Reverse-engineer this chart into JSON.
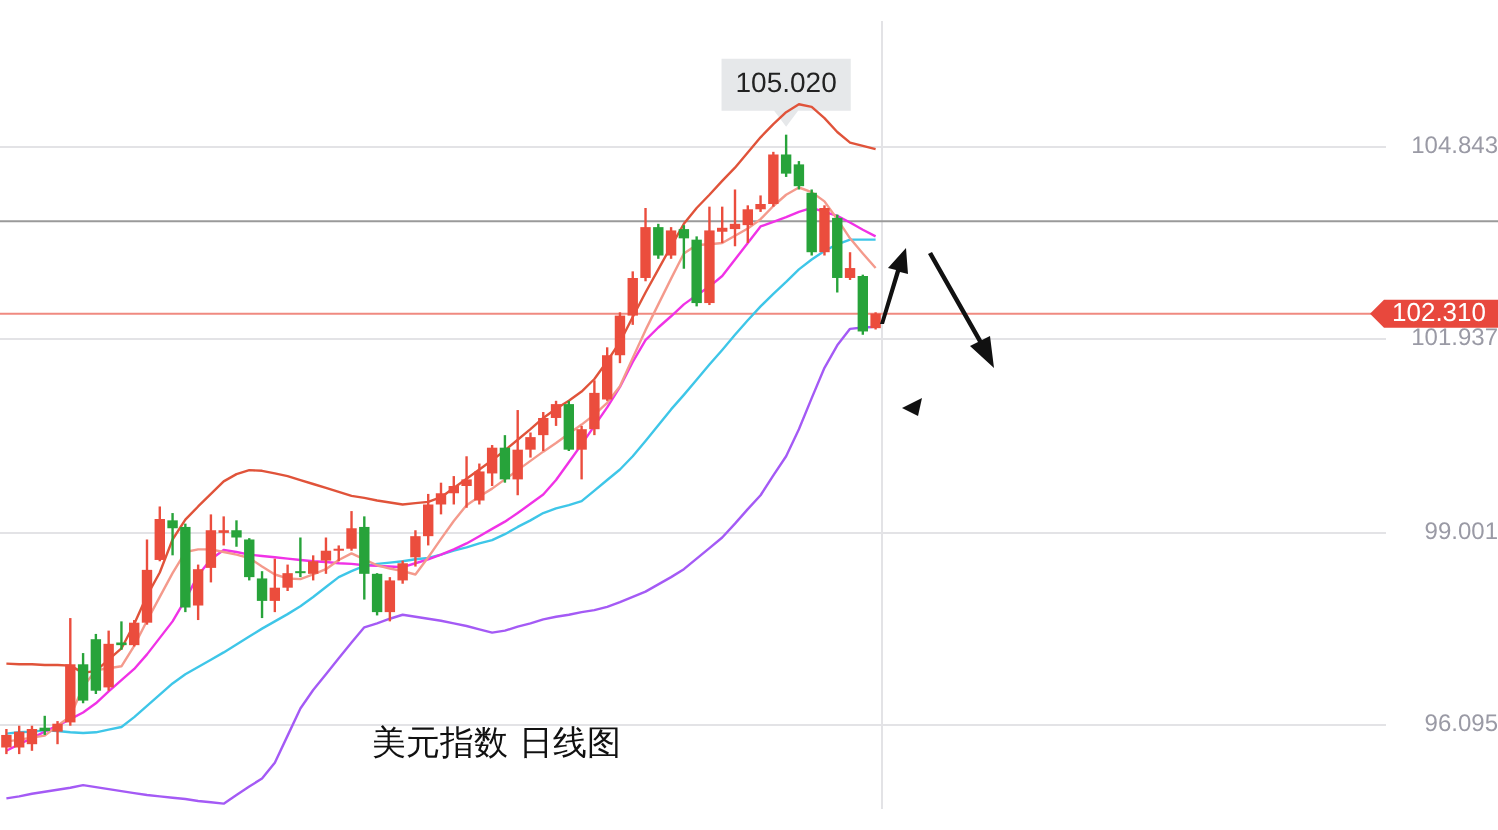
{
  "chart_data": {
    "type": "candlestick",
    "title": "美元指数 日线图",
    "categories": [
      null,
      null,
      null,
      null,
      null,
      null,
      null,
      null,
      null,
      null,
      null,
      null,
      null,
      null,
      null,
      null,
      null,
      null,
      null,
      null,
      null,
      null,
      null,
      null,
      null,
      null,
      null,
      null,
      null,
      null,
      null,
      null,
      null,
      null,
      null,
      null,
      null,
      null,
      null,
      null,
      null,
      null,
      null,
      null,
      null,
      null,
      null,
      null,
      null,
      null,
      null,
      null,
      null,
      null,
      null,
      null,
      null,
      null,
      null,
      null,
      null,
      null,
      null,
      null,
      null,
      null,
      null,
      null,
      null
    ],
    "ohlc": [
      [
        95.74,
        96.02,
        95.64,
        95.93
      ],
      [
        95.74,
        96.07,
        95.64,
        95.98
      ],
      [
        95.79,
        96.07,
        95.69,
        96.02
      ],
      [
        96.04,
        96.22,
        95.93,
        95.99
      ],
      [
        95.98,
        96.14,
        95.79,
        96.1
      ],
      [
        96.12,
        97.7,
        96.07,
        97.0
      ],
      [
        97.0,
        97.17,
        96.41,
        96.45
      ],
      [
        97.38,
        97.46,
        96.55,
        96.6
      ],
      [
        96.65,
        97.51,
        96.6,
        97.31
      ],
      [
        97.33,
        97.65,
        97.22,
        97.29
      ],
      [
        97.29,
        97.67,
        97.27,
        97.63
      ],
      [
        97.63,
        98.89,
        97.6,
        98.43
      ],
      [
        98.58,
        99.39,
        98.56,
        99.2
      ],
      [
        99.18,
        99.29,
        98.65,
        99.06
      ],
      [
        99.08,
        99.13,
        97.79,
        97.86
      ],
      [
        97.89,
        98.51,
        97.67,
        98.44
      ],
      [
        98.46,
        99.27,
        98.24,
        99.03
      ],
      [
        98.99,
        99.24,
        98.8,
        99.03
      ],
      [
        99.03,
        99.18,
        98.78,
        98.92
      ],
      [
        98.89,
        98.91,
        98.27,
        98.32
      ],
      [
        98.3,
        98.41,
        97.7,
        97.96
      ],
      [
        97.96,
        98.6,
        97.79,
        98.16
      ],
      [
        98.16,
        98.51,
        98.11,
        98.38
      ],
      [
        98.41,
        98.92,
        98.32,
        98.38
      ],
      [
        98.37,
        98.65,
        98.27,
        98.56
      ],
      [
        98.57,
        98.92,
        98.37,
        98.72
      ],
      [
        98.72,
        98.8,
        98.56,
        98.75
      ],
      [
        98.75,
        99.32,
        98.72,
        99.06
      ],
      [
        99.08,
        99.24,
        97.98,
        98.37
      ],
      [
        98.37,
        98.38,
        97.74,
        97.79
      ],
      [
        97.79,
        98.32,
        97.65,
        98.27
      ],
      [
        98.27,
        98.57,
        98.22,
        98.53
      ],
      [
        98.62,
        99.03,
        98.48,
        98.94
      ],
      [
        98.94,
        99.58,
        98.8,
        99.42
      ],
      [
        99.42,
        99.75,
        99.27,
        99.59
      ],
      [
        99.59,
        99.85,
        99.42,
        99.7
      ],
      [
        99.7,
        100.15,
        99.37,
        99.8
      ],
      [
        99.48,
        100.04,
        99.42,
        99.92
      ],
      [
        99.89,
        100.32,
        99.7,
        100.28
      ],
      [
        100.28,
        100.47,
        99.75,
        99.8
      ],
      [
        99.8,
        100.85,
        99.56,
        100.25
      ],
      [
        100.25,
        100.51,
        100.13,
        100.44
      ],
      [
        100.47,
        100.82,
        100.23,
        100.73
      ],
      [
        100.73,
        100.99,
        100.61,
        100.94
      ],
      [
        100.94,
        100.99,
        100.23,
        100.25
      ],
      [
        100.25,
        100.61,
        99.8,
        100.56
      ],
      [
        100.56,
        101.3,
        100.47,
        101.11
      ],
      [
        101.01,
        101.8,
        100.99,
        101.68
      ],
      [
        101.68,
        102.33,
        101.56,
        102.28
      ],
      [
        102.28,
        102.95,
        102.14,
        102.85
      ],
      [
        102.85,
        103.91,
        102.8,
        103.62
      ],
      [
        103.62,
        103.67,
        103.14,
        103.19
      ],
      [
        103.19,
        103.62,
        103.14,
        103.57
      ],
      [
        103.59,
        103.65,
        102.99,
        103.45
      ],
      [
        103.43,
        103.48,
        102.42,
        102.47
      ],
      [
        102.47,
        103.93,
        102.44,
        103.57
      ],
      [
        103.55,
        103.93,
        103.38,
        103.61
      ],
      [
        103.59,
        104.19,
        103.33,
        103.67
      ],
      [
        103.65,
        103.95,
        103.38,
        103.89
      ],
      [
        103.89,
        104.1,
        103.85,
        103.97
      ],
      [
        103.97,
        104.76,
        103.93,
        104.72
      ],
      [
        104.72,
        105.02,
        104.38,
        104.43
      ],
      [
        104.57,
        104.62,
        104.19,
        104.24
      ],
      [
        104.14,
        104.19,
        103.19,
        103.24
      ],
      [
        103.24,
        103.95,
        103.19,
        103.91
      ],
      [
        103.76,
        103.81,
        102.63,
        102.85
      ],
      [
        102.85,
        103.24,
        102.82,
        103.0
      ],
      [
        102.88,
        102.9,
        101.99,
        102.04
      ],
      [
        102.09,
        102.33,
        102.07,
        102.31
      ]
    ],
    "series": [
      {
        "type": "line",
        "color": "#e0533a",
        "values": [
          97.01,
          97.0,
          97.0,
          96.99,
          96.99,
          96.98,
          96.87,
          96.9,
          97.07,
          97.24,
          97.61,
          98.04,
          98.39,
          98.89,
          99.19,
          99.39,
          99.58,
          99.77,
          99.88,
          99.94,
          99.93,
          99.89,
          99.85,
          99.79,
          99.73,
          99.67,
          99.61,
          99.55,
          99.52,
          99.48,
          99.45,
          99.42,
          99.44,
          99.46,
          99.53,
          99.67,
          99.81,
          99.95,
          100.09,
          100.24,
          100.4,
          100.56,
          100.73,
          100.87,
          100.99,
          101.13,
          101.32,
          101.59,
          101.88,
          102.26,
          102.63,
          102.98,
          103.33,
          103.67,
          103.91,
          104.11,
          104.32,
          104.52,
          104.75,
          104.98,
          105.18,
          105.36,
          105.48,
          105.44,
          105.27,
          105.06,
          104.9,
          104.85,
          104.8
        ]
      },
      {
        "type": "line",
        "color": "#f49a8c",
        "values": [
          95.83,
          95.86,
          95.89,
          95.92,
          96.07,
          96.21,
          96.66,
          96.91,
          96.94,
          96.97,
          97.28,
          97.66,
          98.02,
          98.38,
          98.7,
          98.74,
          98.74,
          98.7,
          98.66,
          98.61,
          98.48,
          98.36,
          98.3,
          98.29,
          98.36,
          98.44,
          98.58,
          98.68,
          98.59,
          98.5,
          98.45,
          98.41,
          98.36,
          98.62,
          98.9,
          99.17,
          99.41,
          99.54,
          99.66,
          99.8,
          99.94,
          100.08,
          100.22,
          100.35,
          100.49,
          100.63,
          100.78,
          100.96,
          101.21,
          101.64,
          102.06,
          102.45,
          102.84,
          103.22,
          103.35,
          103.36,
          103.38,
          103.49,
          103.6,
          103.74,
          103.94,
          104.11,
          104.22,
          104.15,
          104.01,
          103.74,
          103.45,
          103.22,
          103.0
        ]
      },
      {
        "type": "line",
        "color": "#f032e6",
        "values": [
          95.69,
          95.79,
          95.88,
          95.98,
          96.07,
          96.17,
          96.27,
          96.41,
          96.59,
          96.76,
          96.93,
          97.15,
          97.4,
          97.65,
          97.98,
          98.35,
          98.59,
          98.73,
          98.7,
          98.66,
          98.64,
          98.62,
          98.6,
          98.58,
          98.56,
          98.55,
          98.53,
          98.52,
          98.5,
          98.49,
          98.48,
          98.47,
          98.53,
          98.59,
          98.66,
          98.74,
          98.83,
          98.94,
          99.05,
          99.16,
          99.29,
          99.43,
          99.57,
          99.79,
          100.06,
          100.33,
          100.61,
          100.89,
          101.2,
          101.58,
          101.91,
          102.1,
          102.27,
          102.45,
          102.59,
          102.72,
          102.88,
          103.13,
          103.38,
          103.63,
          103.7,
          103.77,
          103.85,
          103.91,
          103.85,
          103.79,
          103.69,
          103.58,
          103.48
        ]
      },
      {
        "type": "line",
        "color": "#3ec6e8",
        "values": [
          95.95,
          95.97,
          95.98,
          96.0,
          95.99,
          95.97,
          95.96,
          95.97,
          96.01,
          96.05,
          96.2,
          96.37,
          96.54,
          96.71,
          96.85,
          96.96,
          97.07,
          97.18,
          97.3,
          97.42,
          97.54,
          97.65,
          97.76,
          97.88,
          98.02,
          98.17,
          98.32,
          98.41,
          98.49,
          98.52,
          98.54,
          98.56,
          98.59,
          98.61,
          98.66,
          98.72,
          98.77,
          98.83,
          98.88,
          98.97,
          99.08,
          99.18,
          99.29,
          99.36,
          99.41,
          99.47,
          99.63,
          99.79,
          99.95,
          100.15,
          100.38,
          100.62,
          100.86,
          101.08,
          101.31,
          101.54,
          101.76,
          101.99,
          102.21,
          102.42,
          102.61,
          102.79,
          102.98,
          103.13,
          103.26,
          103.36,
          103.43,
          103.43,
          103.43
        ]
      },
      {
        "type": "line",
        "color": "#a45af5",
        "values": [
          94.97,
          95.0,
          95.04,
          95.07,
          95.1,
          95.13,
          95.17,
          95.14,
          95.11,
          95.08,
          95.05,
          95.02,
          95.0,
          94.98,
          94.96,
          94.93,
          94.91,
          94.89,
          95.02,
          95.15,
          95.27,
          95.51,
          95.92,
          96.33,
          96.61,
          96.85,
          97.09,
          97.33,
          97.56,
          97.62,
          97.69,
          97.75,
          97.72,
          97.69,
          97.66,
          97.62,
          97.58,
          97.53,
          97.48,
          97.51,
          97.57,
          97.62,
          97.68,
          97.72,
          97.75,
          97.79,
          97.82,
          97.87,
          97.94,
          98.02,
          98.1,
          98.21,
          98.32,
          98.44,
          98.6,
          98.76,
          98.92,
          99.13,
          99.35,
          99.56,
          99.86,
          100.15,
          100.56,
          101.03,
          101.49,
          101.83,
          102.08,
          102.1,
          102.11
        ]
      }
    ],
    "ylim": [
      94.83,
      106.72
    ],
    "yticks": [
      96.095,
      99.001,
      101.937,
      104.843
    ],
    "ref_lines": [
      {
        "axis": "y",
        "value": 103.71,
        "color": "#9a9a9a"
      },
      {
        "axis": "y",
        "value": 102.31,
        "label": "102.310",
        "color": "#f08a80"
      }
    ],
    "annotations": [
      {
        "text": "105.020",
        "y": 105.02
      }
    ],
    "grid": "y",
    "tick_labels": "y",
    "legend": false
  }
}
